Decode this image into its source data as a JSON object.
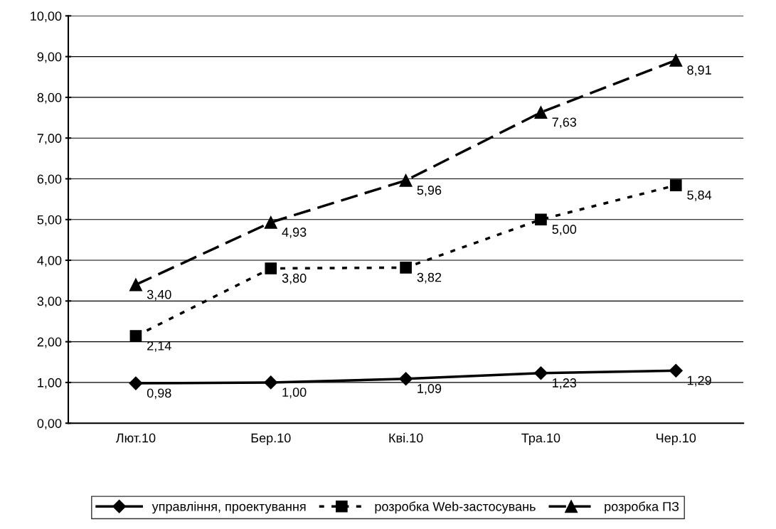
{
  "chart_data": {
    "type": "line",
    "categories": [
      "Лют.10",
      "Бер.10",
      "Кві.10",
      "Тра.10",
      "Чер.10"
    ],
    "series": [
      {
        "name": "управління, проектування",
        "color": "#000000",
        "marker": "diamond",
        "line_style": "solid",
        "values": [
          0.98,
          1.0,
          1.09,
          1.23,
          1.29
        ],
        "value_labels": [
          "0,98",
          "1,00",
          "1,09",
          "1,23",
          "1,29"
        ]
      },
      {
        "name": "розробка Web-застосувань",
        "color": "#000000",
        "marker": "square",
        "line_style": "dotted",
        "values": [
          2.14,
          3.8,
          3.82,
          5.0,
          5.84
        ],
        "value_labels": [
          "2,14",
          "3,80",
          "3,82",
          "5,00",
          "5,84"
        ]
      },
      {
        "name": "розробка ПЗ",
        "color": "#000000",
        "marker": "triangle",
        "line_style": "dashed",
        "values": [
          3.4,
          4.93,
          5.96,
          7.63,
          8.91
        ],
        "value_labels": [
          "3,40",
          "4,93",
          "5,96",
          "7,63",
          "8,91"
        ]
      }
    ],
    "ylim": [
      0,
      10
    ],
    "yticks": [
      {
        "value": 0,
        "label": "0,00"
      },
      {
        "value": 1,
        "label": "1,00"
      },
      {
        "value": 2,
        "label": "2,00"
      },
      {
        "value": 3,
        "label": "3,00"
      },
      {
        "value": 4,
        "label": "4,00"
      },
      {
        "value": 5,
        "label": "5,00"
      },
      {
        "value": 6,
        "label": "6,00"
      },
      {
        "value": 7,
        "label": "7,00"
      },
      {
        "value": 8,
        "label": "8,00"
      },
      {
        "value": 9,
        "label": "9,00"
      },
      {
        "value": 10,
        "label": "10,00"
      }
    ],
    "grid": "y",
    "legend": "bottom"
  }
}
